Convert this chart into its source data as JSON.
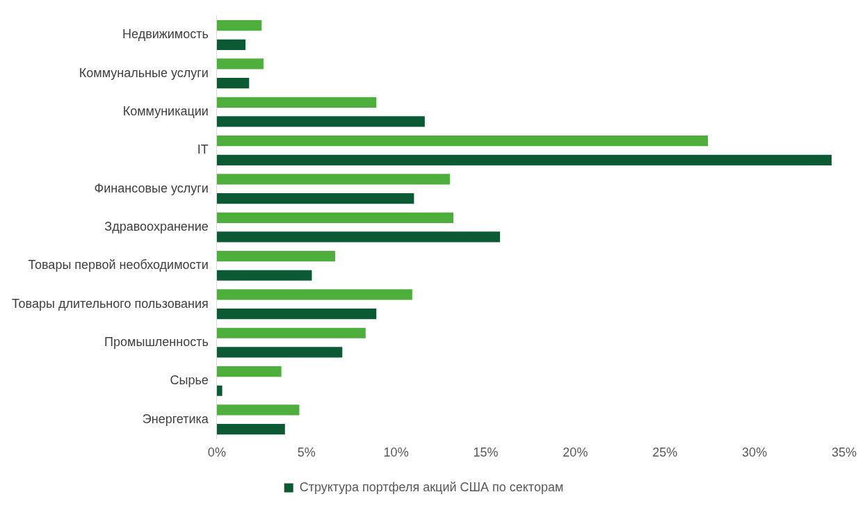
{
  "chart_data": {
    "type": "bar",
    "orientation": "horizontal",
    "categories": [
      "Недвижимость",
      "Коммунальные услуги",
      "Коммуникации",
      "IT",
      "Финансовые услуги",
      "Здравоохранение",
      "Товары первой необходимости",
      "Товары длительного пользования",
      "Промышленность",
      "Сырье",
      "Энергетика"
    ],
    "series": [
      {
        "color": "#4eae3c",
        "values": [
          2.5,
          2.6,
          8.9,
          27.4,
          13.0,
          13.2,
          6.6,
          10.9,
          8.3,
          3.6,
          4.6
        ]
      },
      {
        "name": "Структура портфеля акций США по секторам",
        "color": "#0b5a34",
        "values": [
          1.6,
          1.8,
          11.6,
          34.3,
          11.0,
          15.8,
          5.3,
          8.9,
          7.0,
          0.3,
          3.8
        ]
      }
    ],
    "xlim": [
      0,
      35
    ],
    "xticks": [
      {
        "value": 0,
        "label": "0%"
      },
      {
        "value": 5,
        "label": "5%"
      },
      {
        "value": 10,
        "label": "10%"
      },
      {
        "value": 15,
        "label": "15%"
      },
      {
        "value": 20,
        "label": "20%"
      },
      {
        "value": 25,
        "label": "25%"
      },
      {
        "value": 30,
        "label": "30%"
      },
      {
        "value": 35,
        "label": "35%"
      }
    ],
    "grid": false,
    "legend": "bottom"
  }
}
